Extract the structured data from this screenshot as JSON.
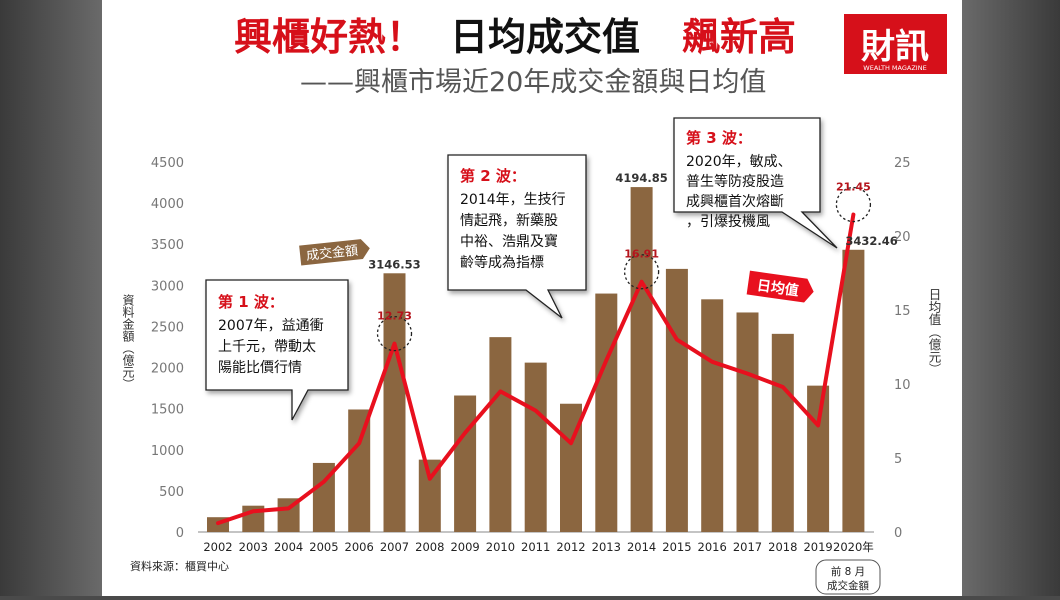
{
  "headline": {
    "part1": "興櫃好熱！",
    "part2": "日均成交值",
    "part3": "飆新高",
    "subtitle": "——興櫃市場近20年成交金額與日均值"
  },
  "logo": {
    "text": "財訊",
    "tagline": "WEALTH MAGAZINE"
  },
  "source_note": "資料來源：櫃買中心",
  "footnote": {
    "line1": "前 8 月",
    "line2": "成交金額"
  },
  "colors": {
    "bar": "#8b6640",
    "line": "#e8101e",
    "headline_red": "#d6101a",
    "axis_text": "#777777"
  },
  "annotations": [
    {
      "title": "第 1 波：",
      "lines": [
        "2007年，益通衝",
        "上千元，帶動太",
        "陽能比價行情"
      ]
    },
    {
      "title": "第 2 波：",
      "lines": [
        "2014年，生技行",
        "情起飛，新藥股",
        "中裕、浩鼎及寶",
        "齡等成為指標"
      ]
    },
    {
      "title": "第 3 波：",
      "lines": [
        "2020年，敏成、",
        "普生等防疫股造",
        "成興櫃首次熔斷",
        "，引爆投機風"
      ]
    }
  ],
  "legend_tags": {
    "bars": "成交金額",
    "line": "日均值"
  },
  "chart_data": {
    "type": "bar",
    "categories": [
      "2002",
      "2003",
      "2004",
      "2005",
      "2006",
      "2007",
      "2008",
      "2009",
      "2010",
      "2011",
      "2012",
      "2013",
      "2014",
      "2015",
      "2016",
      "2017",
      "2018",
      "2019",
      "2020年"
    ],
    "series": [
      {
        "name": "成交金額",
        "type": "bar",
        "axis": "left",
        "values": [
          180,
          320,
          410,
          840,
          1490,
          3146.53,
          880,
          1660,
          2370,
          2060,
          1560,
          2900,
          4194.85,
          3200,
          2830,
          2670,
          2410,
          1780,
          3432.46
        ]
      },
      {
        "name": "日均值",
        "type": "line",
        "axis": "right",
        "values": [
          0.6,
          1.4,
          1.6,
          3.4,
          6,
          12.73,
          3.6,
          6.7,
          9.5,
          8.2,
          6,
          11.6,
          16.91,
          13,
          11.5,
          10.7,
          9.8,
          7.2,
          21.45
        ]
      }
    ],
    "value_labels": [
      {
        "category": "2007",
        "bar": "3146.53",
        "line": "12.73"
      },
      {
        "category": "2014",
        "bar": "4194.85",
        "line": "16.91"
      },
      {
        "category": "2020年",
        "bar": "3432.46",
        "line": "21.45"
      }
    ],
    "ylabel": "資料金額（億元）",
    "y2label": "日均值（億元）",
    "ylim": [
      0,
      4500
    ],
    "y2lim": [
      0,
      25
    ],
    "yticks": [
      0,
      500,
      1000,
      1500,
      2000,
      2500,
      3000,
      3500,
      4000,
      4500
    ],
    "y2ticks": [
      0,
      5,
      10,
      15,
      20,
      25
    ],
    "grid": false
  }
}
